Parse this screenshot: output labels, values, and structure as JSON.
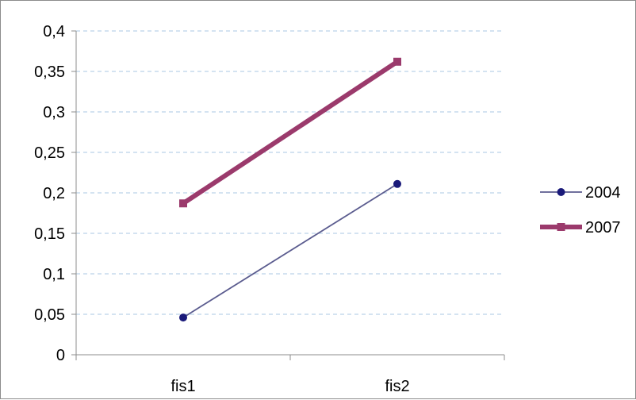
{
  "chart_data": {
    "type": "line",
    "title": "",
    "xlabel": "",
    "ylabel": "",
    "categories": [
      "fis1",
      "fis2"
    ],
    "ylim": [
      0,
      0.4
    ],
    "yticks": [
      0,
      0.05,
      0.1,
      0.15,
      0.2,
      0.25,
      0.3,
      0.35,
      0.4
    ],
    "ytick_labels": [
      "0",
      "0,05",
      "0,1",
      "0,15",
      "0,2",
      "0,25",
      "0,3",
      "0,35",
      "0,4"
    ],
    "grid": true,
    "legend_position": "right",
    "series": [
      {
        "name": "2004",
        "values": [
          0.046,
          0.211
        ],
        "color": "#5b5c8f",
        "marker": "circle",
        "marker_color": "#1a1a7a"
      },
      {
        "name": "2007",
        "values": [
          0.187,
          0.362
        ],
        "color": "#9b3a6c",
        "marker": "square",
        "marker_color": "#9b3a6c"
      }
    ]
  }
}
